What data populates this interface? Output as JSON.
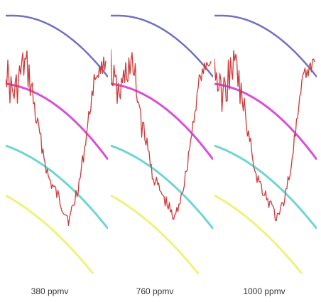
{
  "chart_data": [
    {
      "type": "line",
      "caption": "380 ppmv",
      "grid": false,
      "colors": {
        "blue": "#7070c4",
        "magenta": "#d84fd8",
        "cyan": "#6fd4d4",
        "yellow": "#f1f17a",
        "red": "#cc3b3b"
      }
    },
    {
      "type": "line",
      "caption": "760 ppmv",
      "grid": false,
      "colors": {
        "blue": "#7070c4",
        "magenta": "#d84fd8",
        "cyan": "#6fd4d4",
        "yellow": "#f1f17a",
        "red": "#cc3b3b"
      }
    },
    {
      "type": "line",
      "caption": "1000 ppmv",
      "grid": false,
      "colors": {
        "blue": "#7070c4",
        "magenta": "#d84fd8",
        "cyan": "#6fd4d4",
        "yellow": "#f1f17a",
        "red": "#cc3b3b"
      }
    }
  ]
}
